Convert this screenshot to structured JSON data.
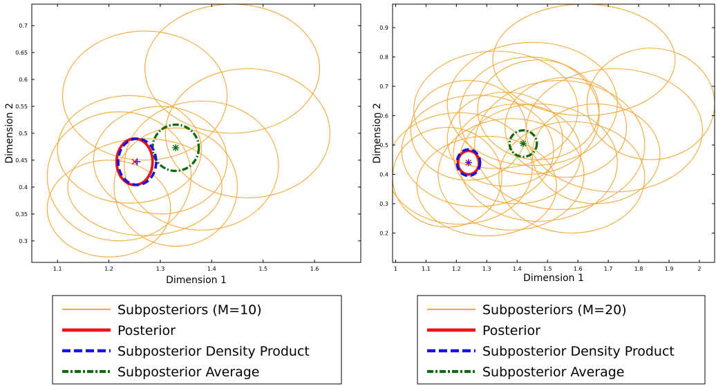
{
  "colors": {
    "subposteriors": "#f4a83a",
    "posterior": "#e8141a",
    "density_product": "#1414e6",
    "average": "#0b6a0b",
    "axis": "#000000"
  },
  "chart_data": [
    {
      "type": "scatter",
      "xlabel": "Dimension 1",
      "ylabel": "Dimension 2",
      "xlim": [
        1.05,
        1.69
      ],
      "ylim": [
        0.26,
        0.74
      ],
      "xticks": [
        "1.1",
        "1.2",
        "1.3",
        "1.4",
        "1.5",
        "1.6"
      ],
      "yticks": [
        "0.3",
        "0.35",
        "0.4",
        "0.45",
        "0.5",
        "0.55",
        "0.6",
        "0.65",
        "0.7"
      ],
      "legend": {
        "placement": "below",
        "entries": [
          {
            "key": "subposteriors",
            "label": "Subposteriors (M=10)",
            "style": "solid-thin"
          },
          {
            "key": "posterior",
            "label": "Posterior",
            "style": "solid-thick"
          },
          {
            "key": "density_product",
            "label": "Subposterior Density Product",
            "style": "dashed"
          },
          {
            "key": "average",
            "label": "Subposterior Average",
            "style": "dashdot"
          }
        ]
      },
      "subposteriors": [
        {
          "cx": 1.44,
          "cy": 0.62,
          "rx": 0.17,
          "ry": 0.12
        },
        {
          "cx": 1.27,
          "cy": 0.57,
          "rx": 0.16,
          "ry": 0.12
        },
        {
          "cx": 1.47,
          "cy": 0.5,
          "rx": 0.16,
          "ry": 0.12
        },
        {
          "cx": 1.24,
          "cy": 0.47,
          "rx": 0.14,
          "ry": 0.1
        },
        {
          "cx": 1.3,
          "cy": 0.45,
          "rx": 0.13,
          "ry": 0.1
        },
        {
          "cx": 1.22,
          "cy": 0.42,
          "rx": 0.14,
          "ry": 0.12
        },
        {
          "cx": 1.2,
          "cy": 0.36,
          "rx": 0.12,
          "ry": 0.09
        },
        {
          "cx": 1.33,
          "cy": 0.4,
          "rx": 0.12,
          "ry": 0.11
        },
        {
          "cx": 1.27,
          "cy": 0.4,
          "rx": 0.15,
          "ry": 0.09
        },
        {
          "cx": 1.38,
          "cy": 0.44,
          "rx": 0.15,
          "ry": 0.12
        }
      ],
      "posterior": {
        "cx": 1.25,
        "cy": 0.447,
        "rx": 0.035,
        "ry": 0.043,
        "marker": "x"
      },
      "density_product": {
        "cx": 1.255,
        "cy": 0.447,
        "rx": 0.037,
        "ry": 0.043,
        "marker": "+"
      },
      "average": {
        "cx": 1.33,
        "cy": 0.473,
        "rx": 0.045,
        "ry": 0.043,
        "marker": "*"
      }
    },
    {
      "type": "scatter",
      "xlabel": "Dimension 1",
      "ylabel": "Dimension 2",
      "xlim": [
        0.99,
        2.05
      ],
      "ylim": [
        0.1,
        0.98
      ],
      "xticks": [
        "1",
        "1.1",
        "1.2",
        "1.3",
        "1.4",
        "1.5",
        "1.6",
        "1.7",
        "1.8",
        "1.9",
        "2"
      ],
      "yticks": [
        "0.2",
        "0.3",
        "0.4",
        "0.5",
        "0.6",
        "0.7",
        "0.8",
        "0.9"
      ],
      "legend": {
        "placement": "below",
        "entries": [
          {
            "key": "subposteriors",
            "label": "Subposteriors (M=20)",
            "style": "solid-thin"
          },
          {
            "key": "posterior",
            "label": "Posterior",
            "style": "solid-thick"
          },
          {
            "key": "density_product",
            "label": "Subposterior Density Product",
            "style": "dashed"
          },
          {
            "key": "average",
            "label": "Subposterior Average",
            "style": "dashdot"
          }
        ]
      },
      "subposteriors": [
        {
          "cx": 1.62,
          "cy": 0.79,
          "rx": 0.3,
          "ry": 0.19
        },
        {
          "cx": 1.84,
          "cy": 0.64,
          "rx": 0.21,
          "ry": 0.19
        },
        {
          "cx": 1.72,
          "cy": 0.55,
          "rx": 0.29,
          "ry": 0.21
        },
        {
          "cx": 1.45,
          "cy": 0.64,
          "rx": 0.28,
          "ry": 0.21
        },
        {
          "cx": 1.33,
          "cy": 0.62,
          "rx": 0.27,
          "ry": 0.2
        },
        {
          "cx": 1.54,
          "cy": 0.5,
          "rx": 0.28,
          "ry": 0.22
        },
        {
          "cx": 1.27,
          "cy": 0.48,
          "rx": 0.25,
          "ry": 0.19
        },
        {
          "cx": 1.38,
          "cy": 0.4,
          "rx": 0.24,
          "ry": 0.19
        },
        {
          "cx": 1.21,
          "cy": 0.42,
          "rx": 0.24,
          "ry": 0.19
        },
        {
          "cx": 1.47,
          "cy": 0.44,
          "rx": 0.26,
          "ry": 0.2
        },
        {
          "cx": 1.36,
          "cy": 0.52,
          "rx": 0.19,
          "ry": 0.16
        },
        {
          "cx": 1.24,
          "cy": 0.55,
          "rx": 0.19,
          "ry": 0.17
        },
        {
          "cx": 1.47,
          "cy": 0.62,
          "rx": 0.2,
          "ry": 0.17
        },
        {
          "cx": 1.3,
          "cy": 0.36,
          "rx": 0.23,
          "ry": 0.17
        },
        {
          "cx": 1.17,
          "cy": 0.39,
          "rx": 0.18,
          "ry": 0.17
        },
        {
          "cx": 1.58,
          "cy": 0.39,
          "rx": 0.24,
          "ry": 0.19
        },
        {
          "cx": 1.56,
          "cy": 0.56,
          "rx": 0.2,
          "ry": 0.17
        },
        {
          "cx": 1.4,
          "cy": 0.47,
          "rx": 0.21,
          "ry": 0.17
        },
        {
          "cx": 1.66,
          "cy": 0.47,
          "rx": 0.21,
          "ry": 0.17
        },
        {
          "cx": 1.44,
          "cy": 0.6,
          "rx": 0.23,
          "ry": 0.2
        }
      ],
      "posterior": {
        "cx": 1.24,
        "cy": 0.44,
        "rx": 0.035,
        "ry": 0.04,
        "marker": "x"
      },
      "density_product": {
        "cx": 1.24,
        "cy": 0.44,
        "rx": 0.038,
        "ry": 0.045,
        "marker": "+"
      },
      "average": {
        "cx": 1.42,
        "cy": 0.505,
        "rx": 0.045,
        "ry": 0.045,
        "marker": "*"
      }
    }
  ]
}
